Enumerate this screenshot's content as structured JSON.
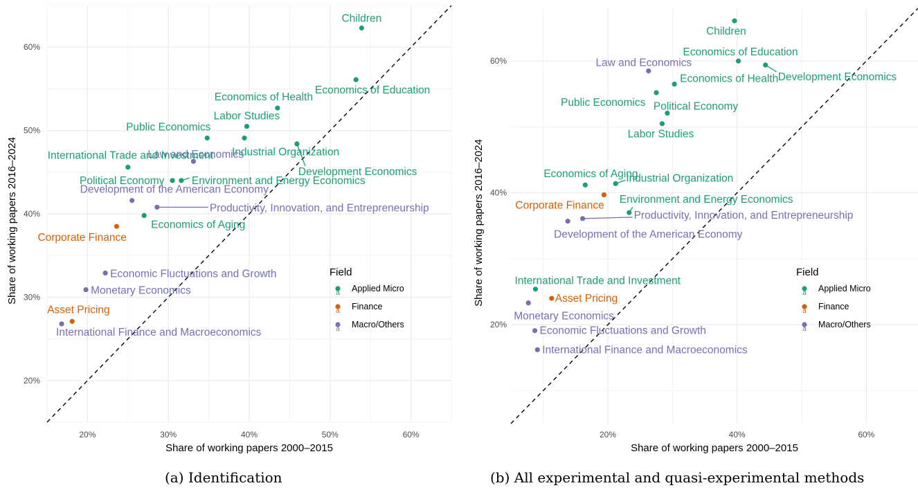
{
  "colors": {
    "Applied Micro": "#1b9e77",
    "Finance": "#d95f02",
    "Macro/Others": "#7570b3",
    "grid": "#ebebeb",
    "diagonal": "#000000"
  },
  "captions": {
    "a": "(a) Identification",
    "b": "(b) All experimental and quasi-experimental methods"
  },
  "chart_data": [
    {
      "type": "scatter",
      "panel": "a",
      "title": "(a) Identification",
      "xlabel": "Share of working papers 2000–2015",
      "ylabel": "Share of working papers 2016–2024",
      "xlim": [
        0.15,
        0.65
      ],
      "ylim": [
        0.15,
        0.65
      ],
      "xticks": [
        0.2,
        0.3,
        0.4,
        0.5,
        0.6
      ],
      "xtick_labels": [
        "20%",
        "30%",
        "40%",
        "50%",
        "60%"
      ],
      "yticks": [
        0.2,
        0.3,
        0.4,
        0.5,
        0.6
      ],
      "ytick_labels": [
        "20%",
        "30%",
        "40%",
        "50%",
        "60%"
      ],
      "grid": true,
      "reference_line": "y = x (dashed)",
      "legend": {
        "title": "Field",
        "placement": "right-center",
        "entries": [
          "Applied Micro",
          "Finance",
          "Macro/Others"
        ]
      },
      "points": [
        {
          "label": "Children",
          "field": "Applied Micro",
          "x": 0.539,
          "y": 0.623
        },
        {
          "label": "Economics of Education",
          "field": "Applied Micro",
          "x": 0.532,
          "y": 0.561
        },
        {
          "label": "Economics of Health",
          "field": "Applied Micro",
          "x": 0.435,
          "y": 0.527
        },
        {
          "label": "Labor Studies",
          "field": "Applied Micro",
          "x": 0.397,
          "y": 0.505
        },
        {
          "label": "Public Economics",
          "field": "Applied Micro",
          "x": 0.348,
          "y": 0.491
        },
        {
          "label": "Industrial Organization",
          "field": "Applied Micro",
          "x": 0.394,
          "y": 0.491
        },
        {
          "label": "Development Economics",
          "field": "Applied Micro",
          "x": 0.459,
          "y": 0.484
        },
        {
          "label": "Law and Economics",
          "field": "Macro/Others",
          "x": 0.331,
          "y": 0.463
        },
        {
          "label": "International Trade and Investment",
          "field": "Applied Micro",
          "x": 0.25,
          "y": 0.456
        },
        {
          "label": "Political Economy",
          "field": "Applied Micro",
          "x": 0.305,
          "y": 0.44
        },
        {
          "label": "Environment and Energy Economics",
          "field": "Applied Micro",
          "x": 0.316,
          "y": 0.44
        },
        {
          "label": "Development of the American Economy",
          "field": "Macro/Others",
          "x": 0.255,
          "y": 0.416
        },
        {
          "label": "Productivity, Innovation, and Entrepreneurship",
          "field": "Macro/Others",
          "x": 0.286,
          "y": 0.408
        },
        {
          "label": "Economics of Aging",
          "field": "Applied Micro",
          "x": 0.27,
          "y": 0.398
        },
        {
          "label": "Corporate Finance",
          "field": "Finance",
          "x": 0.236,
          "y": 0.385
        },
        {
          "label": "Economic Fluctuations and Growth",
          "field": "Macro/Others",
          "x": 0.222,
          "y": 0.329
        },
        {
          "label": "Monetary Economics",
          "field": "Macro/Others",
          "x": 0.198,
          "y": 0.309
        },
        {
          "label": "Asset Pricing",
          "field": "Finance",
          "x": 0.181,
          "y": 0.271
        },
        {
          "label": "International Finance and Macroeconomics",
          "field": "Macro/Others",
          "x": 0.168,
          "y": 0.268
        }
      ]
    },
    {
      "type": "scatter",
      "panel": "b",
      "title": "(b) All experimental and quasi-experimental methods",
      "xlabel": "Share of working papers 2000–2015",
      "ylabel": "Share of working papers 2016–2024",
      "xlim": [
        0.05,
        0.68
      ],
      "ylim": [
        0.05,
        0.68
      ],
      "xticks": [
        0.2,
        0.4,
        0.6
      ],
      "xtick_labels": [
        "20%",
        "40%",
        "60%"
      ],
      "yticks": [
        0.2,
        0.4,
        0.6
      ],
      "ytick_labels": [
        "20%",
        "40%",
        "60%"
      ],
      "grid": true,
      "reference_line": "y = x (dashed)",
      "legend": {
        "title": "Field",
        "placement": "right-center",
        "entries": [
          "Applied Micro",
          "Finance",
          "Macro/Others"
        ]
      },
      "points": [
        {
          "label": "Children",
          "field": "Applied Micro",
          "x": 0.396,
          "y": 0.661
        },
        {
          "label": "Economics of Education",
          "field": "Applied Micro",
          "x": 0.402,
          "y": 0.6
        },
        {
          "label": "Development Economics",
          "field": "Applied Micro",
          "x": 0.444,
          "y": 0.594
        },
        {
          "label": "Law and Economics",
          "field": "Macro/Others",
          "x": 0.263,
          "y": 0.585
        },
        {
          "label": "Economics of Health",
          "field": "Applied Micro",
          "x": 0.303,
          "y": 0.565
        },
        {
          "label": "Public Economics",
          "field": "Applied Micro",
          "x": 0.275,
          "y": 0.552
        },
        {
          "label": "Political Economy",
          "field": "Applied Micro",
          "x": 0.292,
          "y": 0.521
        },
        {
          "label": "Labor Studies",
          "field": "Applied Micro",
          "x": 0.284,
          "y": 0.505
        },
        {
          "label": "Economics of Aging",
          "field": "Applied Micro",
          "x": 0.165,
          "y": 0.412
        },
        {
          "label": "Industrial Organization",
          "field": "Applied Micro",
          "x": 0.212,
          "y": 0.414
        },
        {
          "label": "Corporate Finance",
          "field": "Finance",
          "x": 0.194,
          "y": 0.397
        },
        {
          "label": "Environment and Energy Economics",
          "field": "Applied Micro",
          "x": 0.233,
          "y": 0.37
        },
        {
          "label": "Productivity, Innovation, and Entrepreneurship",
          "field": "Macro/Others",
          "x": 0.161,
          "y": 0.361
        },
        {
          "label": "Development of the American Economy",
          "field": "Macro/Others",
          "x": 0.138,
          "y": 0.357
        },
        {
          "label": "International Trade and Investment",
          "field": "Applied Micro",
          "x": 0.088,
          "y": 0.254
        },
        {
          "label": "Asset Pricing",
          "field": "Finance",
          "x": 0.113,
          "y": 0.24
        },
        {
          "label": "Monetary Economics",
          "field": "Macro/Others",
          "x": 0.077,
          "y": 0.233
        },
        {
          "label": "Economic Fluctuations and Growth",
          "field": "Macro/Others",
          "x": 0.087,
          "y": 0.191
        },
        {
          "label": "International Finance and Macroeconomics",
          "field": "Macro/Others",
          "x": 0.091,
          "y": 0.162
        }
      ]
    }
  ]
}
